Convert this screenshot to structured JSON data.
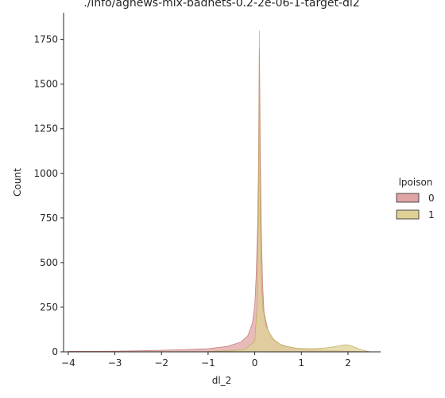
{
  "chart_data": {
    "type": "histogram",
    "title": "./info/agnews-mix-badnets-0.2-2e-06-1-target-dl2",
    "xlabel": "dl_2",
    "ylabel": "Count",
    "xlim": [
      -4.1,
      2.7
    ],
    "ylim": [
      0,
      1900
    ],
    "xticks": [
      -4,
      -3,
      -2,
      -1,
      0,
      1,
      2
    ],
    "yticks": [
      0,
      250,
      500,
      750,
      1000,
      1250,
      1500,
      1750
    ],
    "grid": false,
    "legend": {
      "title": "lpoison",
      "placement": "right",
      "entries": [
        "0",
        "1"
      ]
    },
    "series": [
      {
        "name": "0",
        "color": "#e0a4a4",
        "edge": "#c06b6b",
        "curve": [
          [
            -4.0,
            3
          ],
          [
            -3.5,
            3
          ],
          [
            -3.0,
            4
          ],
          [
            -2.5,
            6
          ],
          [
            -2.0,
            9
          ],
          [
            -1.5,
            12
          ],
          [
            -1.0,
            18
          ],
          [
            -0.6,
            30
          ],
          [
            -0.3,
            55
          ],
          [
            -0.15,
            90
          ],
          [
            -0.05,
            160
          ],
          [
            0.0,
            260
          ],
          [
            0.03,
            420
          ],
          [
            0.06,
            700
          ],
          [
            0.08,
            1050
          ],
          [
            0.09,
            1430
          ],
          [
            0.1,
            1700
          ],
          [
            0.11,
            1450
          ],
          [
            0.12,
            1100
          ],
          [
            0.14,
            700
          ],
          [
            0.17,
            380
          ],
          [
            0.2,
            220
          ],
          [
            0.3,
            100
          ],
          [
            0.5,
            45
          ],
          [
            0.8,
            22
          ],
          [
            1.2,
            12
          ],
          [
            1.6,
            7
          ],
          [
            2.0,
            4
          ],
          [
            2.3,
            1
          ],
          [
            2.4,
            0
          ]
        ]
      },
      {
        "name": "1",
        "color": "#ddd196",
        "edge": "#b8a855",
        "curve": [
          [
            -1.0,
            2
          ],
          [
            -0.5,
            6
          ],
          [
            -0.2,
            15
          ],
          [
            0.0,
            60
          ],
          [
            0.05,
            250
          ],
          [
            0.08,
            820
          ],
          [
            0.1,
            1800
          ],
          [
            0.11,
            1050
          ],
          [
            0.13,
            500
          ],
          [
            0.17,
            250
          ],
          [
            0.25,
            140
          ],
          [
            0.4,
            70
          ],
          [
            0.6,
            35
          ],
          [
            0.9,
            20
          ],
          [
            1.2,
            18
          ],
          [
            1.5,
            22
          ],
          [
            1.7,
            28
          ],
          [
            1.85,
            36
          ],
          [
            1.95,
            40
          ],
          [
            2.05,
            36
          ],
          [
            2.15,
            25
          ],
          [
            2.3,
            10
          ],
          [
            2.45,
            2
          ],
          [
            2.5,
            0
          ]
        ]
      }
    ]
  }
}
